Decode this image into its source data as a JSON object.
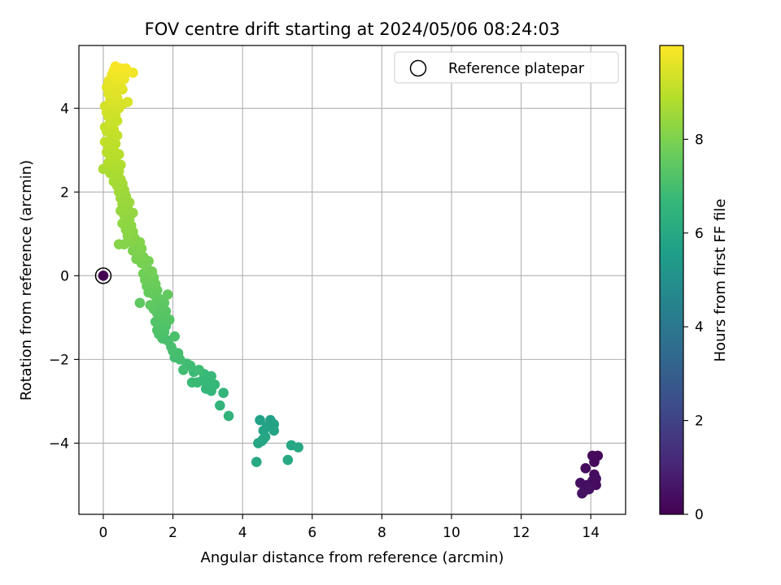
{
  "chart_data": {
    "type": "scatter",
    "title": "FOV centre drift starting at 2024/05/06 08:24:03",
    "xlabel": "Angular distance from reference (arcmin)",
    "ylabel": "Rotation from reference (arcmin)",
    "xlim": [
      -0.7,
      15.0
    ],
    "ylim": [
      -5.7,
      5.5
    ],
    "xticks": [
      "0",
      "2",
      "4",
      "6",
      "8",
      "10",
      "12",
      "14"
    ],
    "yticks": [
      "−4",
      "−2",
      "0",
      "2",
      "4"
    ],
    "grid": true,
    "legend": {
      "placement": "top-right",
      "entries": [
        "Reference platepar"
      ]
    },
    "colorbar": {
      "label": "Hours from first FF file",
      "range": [
        0,
        10
      ],
      "ticks": [
        "0",
        "2",
        "4",
        "6",
        "8"
      ],
      "colormap": [
        "#440154",
        "#482878",
        "#3e4989",
        "#31688e",
        "#26828e",
        "#1f9e89",
        "#35b779",
        "#6ece58",
        "#b5de2b",
        "#fde725"
      ]
    },
    "reference": {
      "x": 0.0,
      "y": 0.0,
      "color": "#440154"
    },
    "series": [
      {
        "points": [
          [
            14.2,
            -4.3,
            0.2
          ],
          [
            14.05,
            -4.3,
            0.2
          ],
          [
            14.1,
            -4.45,
            0.25
          ],
          [
            13.85,
            -4.6,
            0.3
          ],
          [
            14.1,
            -4.75,
            0.3
          ],
          [
            14.15,
            -4.85,
            0.35
          ],
          [
            14.05,
            -4.9,
            0.35
          ],
          [
            13.9,
            -5.0,
            0.4
          ],
          [
            13.7,
            -4.95,
            0.4
          ],
          [
            13.8,
            -5.15,
            0.45
          ],
          [
            13.95,
            -5.1,
            0.45
          ],
          [
            14.15,
            -5.0,
            0.3
          ],
          [
            13.75,
            -5.2,
            0.5
          ],
          [
            4.5,
            -3.45,
            5.7
          ],
          [
            4.8,
            -3.45,
            5.7
          ],
          [
            4.9,
            -3.55,
            5.75
          ],
          [
            4.7,
            -3.6,
            5.75
          ],
          [
            4.6,
            -3.7,
            5.8
          ],
          [
            4.9,
            -3.7,
            5.8
          ],
          [
            4.65,
            -3.85,
            5.85
          ],
          [
            4.55,
            -3.95,
            5.85
          ],
          [
            4.45,
            -4.0,
            5.9
          ],
          [
            4.6,
            -3.9,
            5.9
          ],
          [
            5.4,
            -4.05,
            5.95
          ],
          [
            5.6,
            -4.1,
            5.95
          ],
          [
            5.3,
            -4.4,
            6.0
          ],
          [
            4.4,
            -4.45,
            6.0
          ],
          [
            3.6,
            -3.35,
            6.5
          ],
          [
            3.35,
            -3.1,
            6.5
          ],
          [
            3.45,
            -2.8,
            6.55
          ],
          [
            3.1,
            -2.75,
            6.6
          ],
          [
            2.95,
            -2.7,
            6.6
          ],
          [
            3.2,
            -2.6,
            6.65
          ],
          [
            3.05,
            -2.55,
            6.65
          ],
          [
            2.85,
            -2.5,
            6.7
          ],
          [
            3.1,
            -2.4,
            6.7
          ],
          [
            2.9,
            -2.35,
            6.75
          ],
          [
            2.7,
            -2.55,
            6.75
          ],
          [
            2.6,
            -2.3,
            6.8
          ],
          [
            2.55,
            -2.55,
            6.8
          ],
          [
            2.75,
            -2.25,
            6.85
          ],
          [
            2.5,
            -2.15,
            6.85
          ],
          [
            2.4,
            -2.1,
            6.9
          ],
          [
            2.3,
            -2.25,
            6.9
          ],
          [
            2.2,
            -2.0,
            6.95
          ],
          [
            2.05,
            -1.95,
            6.95
          ],
          [
            2.15,
            -1.85,
            7.0
          ],
          [
            2.0,
            -1.8,
            7.0
          ],
          [
            1.95,
            -1.7,
            7.05
          ],
          [
            1.85,
            -1.55,
            7.05
          ],
          [
            2.05,
            -1.45,
            7.1
          ],
          [
            1.7,
            -1.5,
            7.1
          ],
          [
            1.75,
            -1.35,
            7.15
          ],
          [
            1.6,
            -1.4,
            7.15
          ],
          [
            1.55,
            -1.3,
            7.2
          ],
          [
            1.8,
            -1.2,
            7.2
          ],
          [
            1.65,
            -1.1,
            7.25
          ],
          [
            1.5,
            -1.1,
            7.25
          ],
          [
            1.9,
            -1.05,
            7.3
          ],
          [
            1.7,
            -0.95,
            7.3
          ],
          [
            1.55,
            -0.9,
            7.35
          ],
          [
            1.8,
            -0.85,
            7.35
          ],
          [
            1.65,
            -0.75,
            7.4
          ],
          [
            1.45,
            -0.8,
            7.4
          ],
          [
            1.75,
            -0.65,
            7.45
          ],
          [
            1.55,
            -0.6,
            7.45
          ],
          [
            1.35,
            -0.7,
            7.5
          ],
          [
            1.6,
            -0.55,
            7.5
          ],
          [
            1.45,
            -0.45,
            7.55
          ],
          [
            1.85,
            -0.45,
            7.55
          ],
          [
            1.3,
            -0.4,
            7.6
          ],
          [
            1.55,
            -0.35,
            7.6
          ],
          [
            1.4,
            -0.3,
            7.65
          ],
          [
            1.25,
            -0.25,
            7.65
          ],
          [
            1.5,
            -0.2,
            7.7
          ],
          [
            1.35,
            -0.15,
            7.7
          ],
          [
            1.2,
            -0.1,
            7.75
          ],
          [
            1.45,
            -0.05,
            7.75
          ],
          [
            1.3,
            0.0,
            7.8
          ],
          [
            1.15,
            0.05,
            7.8
          ],
          [
            1.4,
            0.1,
            7.85
          ],
          [
            1.25,
            0.2,
            7.85
          ],
          [
            1.05,
            -0.65,
            7.5
          ],
          [
            1.1,
            0.3,
            7.9
          ],
          [
            1.3,
            0.35,
            7.9
          ],
          [
            0.95,
            0.4,
            7.95
          ],
          [
            1.15,
            0.45,
            7.95
          ],
          [
            1.0,
            0.55,
            8.0
          ],
          [
            0.85,
            0.6,
            8.0
          ],
          [
            1.1,
            0.65,
            8.05
          ],
          [
            0.95,
            0.7,
            8.05
          ],
          [
            0.8,
            0.8,
            8.1
          ],
          [
            1.05,
            0.8,
            8.1
          ],
          [
            0.6,
            0.75,
            8.1
          ],
          [
            0.45,
            0.75,
            8.15
          ],
          [
            0.9,
            0.9,
            8.15
          ],
          [
            0.7,
            0.95,
            8.2
          ],
          [
            0.85,
            1.05,
            8.2
          ],
          [
            0.65,
            1.1,
            8.25
          ],
          [
            0.8,
            1.2,
            8.25
          ],
          [
            0.55,
            1.25,
            8.3
          ],
          [
            0.75,
            1.35,
            8.3
          ],
          [
            0.6,
            1.45,
            8.35
          ],
          [
            0.85,
            1.5,
            8.35
          ],
          [
            0.5,
            1.55,
            8.4
          ],
          [
            0.7,
            1.6,
            8.4
          ],
          [
            0.55,
            1.7,
            8.45
          ],
          [
            0.75,
            1.75,
            8.45
          ],
          [
            0.5,
            1.85,
            8.5
          ],
          [
            0.65,
            1.9,
            8.5
          ],
          [
            0.45,
            2.0,
            8.55
          ],
          [
            0.6,
            2.05,
            8.55
          ],
          [
            0.4,
            2.15,
            8.6
          ],
          [
            0.55,
            2.2,
            8.6
          ],
          [
            0.3,
            2.25,
            8.65
          ],
          [
            0.5,
            2.3,
            8.65
          ],
          [
            0.35,
            2.4,
            8.7
          ],
          [
            0.2,
            2.45,
            8.7
          ],
          [
            0.0,
            2.55,
            8.75
          ],
          [
            0.45,
            2.5,
            8.75
          ],
          [
            0.25,
            2.6,
            8.8
          ],
          [
            0.5,
            2.65,
            8.8
          ],
          [
            0.15,
            2.7,
            8.85
          ],
          [
            0.35,
            2.75,
            8.85
          ],
          [
            0.2,
            2.85,
            8.9
          ],
          [
            0.45,
            2.9,
            8.9
          ],
          [
            0.1,
            2.95,
            8.95
          ],
          [
            0.3,
            3.0,
            8.95
          ],
          [
            0.15,
            3.1,
            9.0
          ],
          [
            0.35,
            3.15,
            9.0
          ],
          [
            0.05,
            3.2,
            9.05
          ],
          [
            0.25,
            3.3,
            9.05
          ],
          [
            0.4,
            3.35,
            9.1
          ],
          [
            0.1,
            3.45,
            9.1
          ],
          [
            0.3,
            3.5,
            9.15
          ],
          [
            0.05,
            3.55,
            9.15
          ],
          [
            0.2,
            3.65,
            9.2
          ],
          [
            0.4,
            3.7,
            9.2
          ],
          [
            0.15,
            3.8,
            9.25
          ],
          [
            0.35,
            3.85,
            9.25
          ],
          [
            0.1,
            3.9,
            9.3
          ],
          [
            0.25,
            4.0,
            9.3
          ],
          [
            0.45,
            4.0,
            9.35
          ],
          [
            0.05,
            4.05,
            9.35
          ],
          [
            0.3,
            4.1,
            9.4
          ],
          [
            0.55,
            4.1,
            9.4
          ],
          [
            0.7,
            4.15,
            9.45
          ],
          [
            0.2,
            4.2,
            9.45
          ],
          [
            0.4,
            4.25,
            9.5
          ],
          [
            0.15,
            4.35,
            9.5
          ],
          [
            0.35,
            4.4,
            9.55
          ],
          [
            0.55,
            4.45,
            9.55
          ],
          [
            0.1,
            4.5,
            9.6
          ],
          [
            0.3,
            4.55,
            9.6
          ],
          [
            0.5,
            4.6,
            9.65
          ],
          [
            0.15,
            4.65,
            9.65
          ],
          [
            0.35,
            4.7,
            9.7
          ],
          [
            0.6,
            4.7,
            9.7
          ],
          [
            0.25,
            4.8,
            9.75
          ],
          [
            0.45,
            4.8,
            9.75
          ],
          [
            0.65,
            4.85,
            9.8
          ],
          [
            0.85,
            4.85,
            9.8
          ],
          [
            0.3,
            4.9,
            9.85
          ],
          [
            0.5,
            4.95,
            9.85
          ],
          [
            0.35,
            5.0,
            9.9
          ],
          [
            0.65,
            4.95,
            9.9
          ]
        ]
      }
    ]
  }
}
